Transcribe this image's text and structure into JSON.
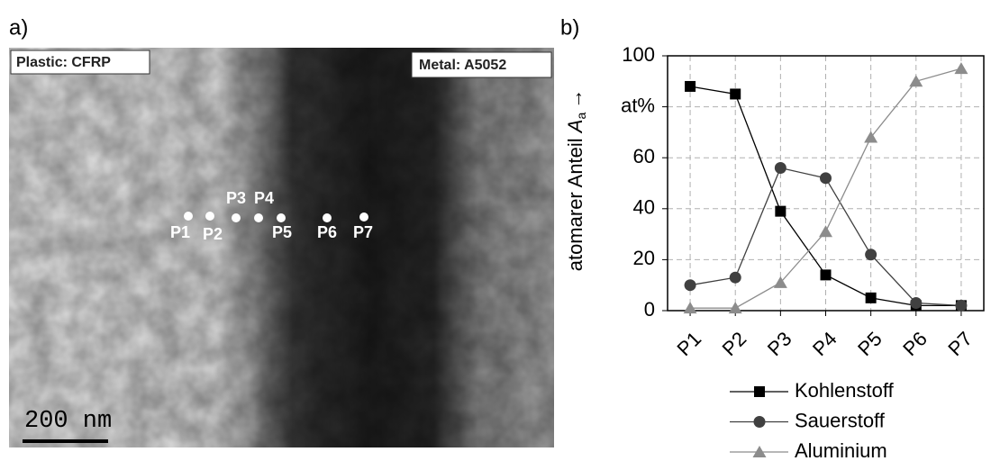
{
  "panel_a": {
    "label": "a)",
    "left_material": "Plastic: CFRP",
    "right_material": "Metal: A5052",
    "points": [
      "P1",
      "P2",
      "P3",
      "P4",
      "P5",
      "P6",
      "P7"
    ],
    "scale_bar": "200 nm"
  },
  "panel_b_label": "b)",
  "chart_data": {
    "type": "line",
    "y_label": {
      "text": "atomarer Anteil ",
      "symbol": "A",
      "subscript": "a",
      "arrow": "→"
    },
    "categories": [
      "P1",
      "P2",
      "P3",
      "P4",
      "P5",
      "P6",
      "P7"
    ],
    "series": [
      {
        "name": "Kohlenstoff",
        "color": "#000000",
        "marker": "square",
        "values": [
          88,
          85,
          39,
          14,
          5,
          2,
          2
        ]
      },
      {
        "name": "Sauerstoff",
        "color": "#404040",
        "marker": "circle",
        "values": [
          10,
          13,
          56,
          52,
          22,
          3,
          2
        ]
      },
      {
        "name": "Aluminium",
        "color": "#8c8c8c",
        "marker": "triangle",
        "values": [
          1,
          1,
          11,
          31,
          68,
          90,
          95
        ]
      }
    ],
    "ylim": [
      0,
      100
    ],
    "yticks": [
      0,
      20,
      40,
      60,
      {
        "value": 80,
        "label": "at%"
      },
      100
    ],
    "grid": true
  }
}
